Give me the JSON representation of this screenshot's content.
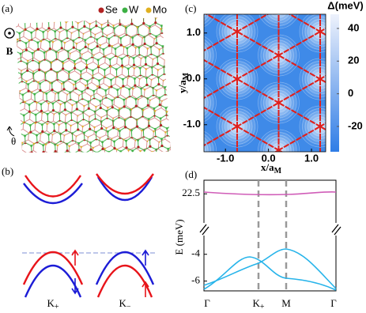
{
  "panel_a": {
    "label": "(a)",
    "legend": [
      {
        "name": "Se",
        "color": "#b22222"
      },
      {
        "name": "W",
        "color": "#3cb043"
      },
      {
        "name": "Mo",
        "color": "#e0b020"
      }
    ],
    "field": "B",
    "angle": "θ"
  },
  "panel_b": {
    "label": "(b)",
    "valleys": [
      {
        "text": "K",
        "sub": "+"
      },
      {
        "text": "K",
        "sub": "−"
      }
    ]
  },
  "panel_c": {
    "label": "(c)",
    "xlabel": {
      "text": "x/a",
      "sub": "M"
    },
    "ylabel": {
      "text": "y/a",
      "sub": "M"
    },
    "xlim": [
      -1.5,
      1.33
    ],
    "ylim": [
      -1.59,
      1.41
    ],
    "xticks": [
      {
        "value": -1,
        "label": "-1.0"
      },
      {
        "value": 0,
        "label": "0.0"
      },
      {
        "value": 1,
        "label": "1.0"
      }
    ],
    "yticks": [
      {
        "value": -1,
        "label": "-1.0"
      },
      {
        "value": 0,
        "label": "0.0"
      },
      {
        "value": 1,
        "label": "1.0"
      }
    ],
    "colorbar": {
      "label": "Δ(meV)",
      "lim": [
        -35.5,
        48.7
      ],
      "ticks": [
        -20,
        0,
        20,
        40
      ]
    }
  },
  "panel_d": {
    "label": "(d)",
    "ylabel": "E (meV)",
    "upper": {
      "ylim": [
        20.9,
        23.25
      ],
      "yticks": [
        22.5
      ]
    },
    "lower": {
      "ylim": [
        -6.73,
        -2.6
      ],
      "yticks": [
        -6,
        -4
      ]
    },
    "kpoints": [
      {
        "text": "Γ"
      },
      {
        "text": "K",
        "sub": "+"
      },
      {
        "text": "M"
      },
      {
        "text": "Γ"
      }
    ]
  }
}
